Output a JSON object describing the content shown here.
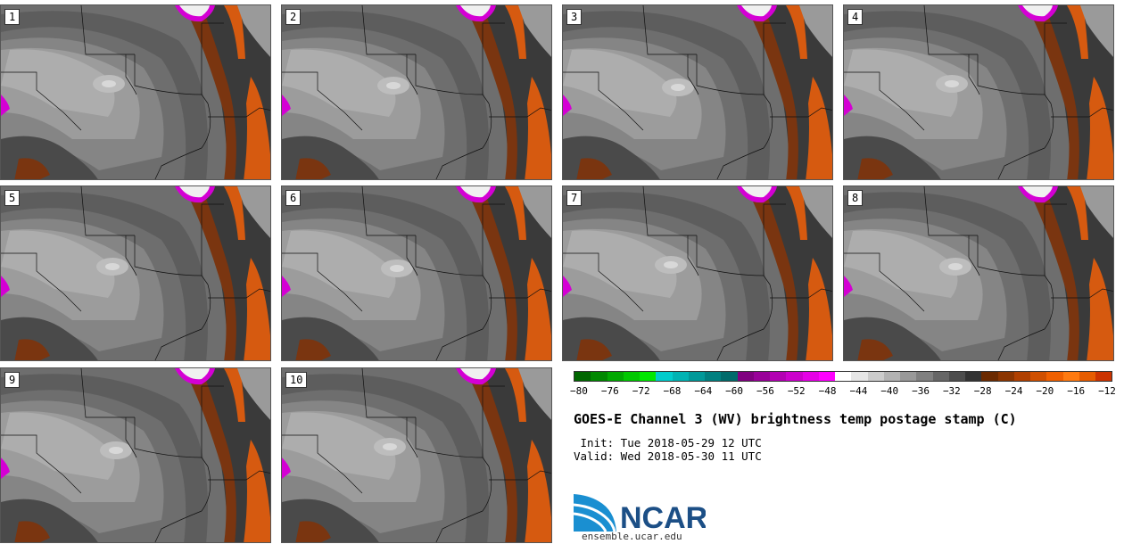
{
  "panels": [
    {
      "label": "1"
    },
    {
      "label": "2"
    },
    {
      "label": "3"
    },
    {
      "label": "4"
    },
    {
      "label": "5"
    },
    {
      "label": "6"
    },
    {
      "label": "7"
    },
    {
      "label": "8"
    },
    {
      "label": "9"
    },
    {
      "label": "10"
    }
  ],
  "colorbar": {
    "ticks": [
      "−80",
      "−76",
      "−72",
      "−68",
      "−64",
      "−60",
      "−56",
      "−52",
      "−48",
      "−44",
      "−40",
      "−36",
      "−32",
      "−28",
      "−24",
      "−20",
      "−16",
      "−12"
    ],
    "colors": [
      "#006600",
      "#008800",
      "#00a800",
      "#00c800",
      "#00e800",
      "#00cccc",
      "#00b3b3",
      "#009999",
      "#008080",
      "#006b6b",
      "#800080",
      "#990099",
      "#b300b3",
      "#cc00cc",
      "#e600e6",
      "#ff00ff",
      "#ffffff",
      "#e6e6e6",
      "#cccccc",
      "#b3b3b3",
      "#999999",
      "#808080",
      "#666666",
      "#4d4d4d",
      "#333333",
      "#6b2a00",
      "#8b3500",
      "#b04000",
      "#d05000",
      "#f06000",
      "#ff7a10",
      "#e65c00",
      "#cc3300"
    ]
  },
  "title": "GOES-E Channel 3 (WV) brightness temp postage stamp (C)",
  "init": " Init: Tue 2018-05-29 12 UTC",
  "valid": "Valid: Wed 2018-05-30 11 UTC",
  "logo": {
    "text": "NCAR",
    "url": "ensemble.ucar.edu"
  },
  "palette": {
    "gray_dark": "#3a3a3a",
    "gray_mid": "#6e6e6e",
    "gray_light": "#9c9c9c",
    "gray_lighter": "#bdbdbd",
    "orange": "#d65a10",
    "brown": "#7a3510",
    "magenta": "#d400d4"
  }
}
